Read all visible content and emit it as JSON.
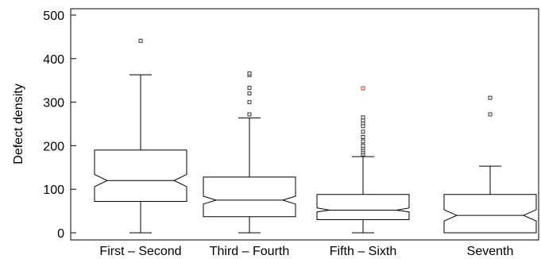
{
  "chart_data": {
    "type": "boxplot",
    "title": "",
    "xlabel": "",
    "ylabel": "Defect density",
    "ylim": [
      0,
      500
    ],
    "yticks": [
      0,
      100,
      200,
      300,
      400,
      500
    ],
    "notched": true,
    "grid": false,
    "legend": "none",
    "categories": [
      "First – Second",
      "Third – Fourth",
      "Fifth – Sixth",
      "Seventh"
    ],
    "boxes": [
      {
        "category": "First – Second",
        "whisker_low": 0,
        "q1": 72,
        "median": 120,
        "q3": 190,
        "whisker_high": 363,
        "notch_low": 106,
        "notch_high": 134,
        "outliers": [
          441
        ],
        "outlier_colors": [
          "#333333"
        ]
      },
      {
        "category": "Third – Fourth",
        "whisker_low": 0,
        "q1": 37,
        "median": 75,
        "q3": 128,
        "whisker_high": 264,
        "notch_low": 66,
        "notch_high": 84,
        "outliers": [
          272,
          300,
          320,
          333,
          362,
          366
        ],
        "outlier_colors": [
          "#333333",
          "#333333",
          "#333333",
          "#333333",
          "#333333",
          "#333333"
        ]
      },
      {
        "category": "Fifth – Sixth",
        "whisker_low": 0,
        "q1": 30,
        "median": 52,
        "q3": 88,
        "whisker_high": 175,
        "notch_low": 48,
        "notch_high": 57,
        "outliers": [
          180,
          185,
          190,
          195,
          200,
          210,
          220,
          232,
          245,
          252,
          258,
          265,
          332
        ],
        "outlier_colors": [
          "#333333",
          "#333333",
          "#333333",
          "#333333",
          "#333333",
          "#333333",
          "#333333",
          "#333333",
          "#333333",
          "#333333",
          "#333333",
          "#333333",
          "#c0392b"
        ]
      },
      {
        "category": "Seventh",
        "whisker_low": 0,
        "q1": 0,
        "median": 40,
        "q3": 88,
        "whisker_high": 153,
        "notch_low": 27,
        "notch_high": 53,
        "outliers": [
          272,
          310
        ],
        "outlier_colors": [
          "#333333",
          "#333333"
        ]
      }
    ]
  }
}
